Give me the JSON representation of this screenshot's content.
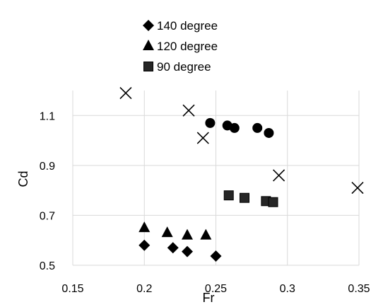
{
  "chart_data": {
    "type": "scatter",
    "xlabel": "Fr",
    "ylabel": "Cd",
    "xlim": [
      0.15,
      0.35
    ],
    "ylim": [
      0.5,
      1.2
    ],
    "x_ticks": [
      0.15,
      0.2,
      0.25,
      0.3,
      0.35
    ],
    "y_ticks": [
      0.5,
      0.7,
      0.9,
      1.1
    ],
    "x_tick_labels": [
      "0.15",
      "0.2",
      "0.25",
      "0.3",
      "0.35"
    ],
    "y_tick_labels": [
      "0.5",
      "0.7",
      "0.9",
      "1.1"
    ],
    "grid": "vertical and horizontal major gridlines",
    "legend_position": "top-center",
    "series": [
      {
        "name": "140 degree",
        "marker": "diamond",
        "color": "#000000",
        "x": [
          0.2,
          0.22,
          0.23,
          0.25
        ],
        "y": [
          0.58,
          0.57,
          0.555,
          0.537
        ]
      },
      {
        "name": "120 degree",
        "marker": "triangle",
        "color": "#000000",
        "x": [
          0.2,
          0.216,
          0.23,
          0.243
        ],
        "y": [
          0.65,
          0.63,
          0.62,
          0.62
        ]
      },
      {
        "name": "90 degree",
        "marker": "square",
        "color": "#000000",
        "x": [
          0.259,
          0.27,
          0.285,
          0.29
        ],
        "y": [
          0.78,
          0.77,
          0.757,
          0.753
        ]
      },
      {
        "marker": "circle",
        "color": "#000000",
        "x": [
          0.246,
          0.258,
          0.263,
          0.279,
          0.287
        ],
        "y": [
          1.07,
          1.06,
          1.05,
          1.05,
          1.03
        ]
      },
      {
        "marker": "cross",
        "color": "#000000",
        "x": [
          0.187,
          0.231,
          0.241,
          0.294,
          0.349
        ],
        "y": [
          1.19,
          1.12,
          1.01,
          0.86,
          0.81
        ]
      }
    ]
  }
}
